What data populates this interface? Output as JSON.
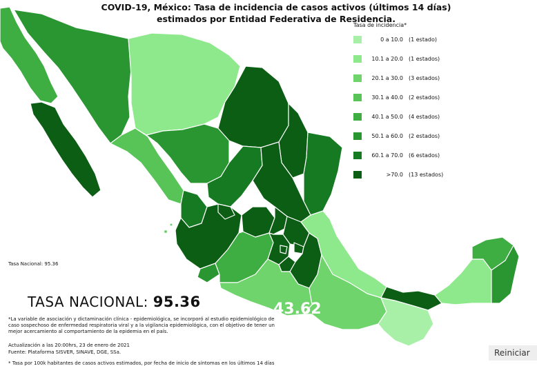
{
  "title_line1": "COVID-19, México: Tasa de incidencia de casos activos (últimos 14 días)",
  "title_line2": "estimados por Entidad Federativa de Residencia.",
  "legend": {
    "title": "Tasa de incidencia*",
    "items": [
      {
        "range": "0 a 10.0",
        "count": "(1 estado)",
        "color": "#a8f0a8"
      },
      {
        "range": "10.1 a 20.0",
        "count": "(1 estados)",
        "color": "#8ee88c"
      },
      {
        "range": "20.1 a 30.0",
        "count": "(3 estados)",
        "color": "#6fd46c"
      },
      {
        "range": "30.1 a 40.0",
        "count": "(2 estados)",
        "color": "#58c457"
      },
      {
        "range": "40.1 a 50.0",
        "count": "(4 estados)",
        "color": "#3eae42"
      },
      {
        "range": "50.1 a 60.0",
        "count": "(2 estados)",
        "color": "#2a9632"
      },
      {
        "range": "60.1 a 70.0",
        "count": "(6 estados)",
        "color": "#167a22"
      },
      {
        "range": ">70.0",
        "count": "(13 estados)",
        "color": "#0b5e14"
      }
    ]
  },
  "small_rate": "Tasa Nacional: 95.36",
  "national_label": "TASA NACIONAL:",
  "national_value": "95.36",
  "map_label": "43.62",
  "footnote": "*La variable de asociación y dictaminación clínica - epidemiológica, se incorporó al estudio epidemiológico de caso sospechoso de enfermedad respiratoria viral y a la vigilancia epidemiológica, con el objetivo de tener un mejor acercamiento al comportamiento de la epidemia en el país.",
  "updated": "Actualización a las 20:00hrs, 23 de enero de 2021",
  "source": "Fuente: Plataforma SISVER, SINAVE, DGE, SSa.",
  "footnote2": "* Tasa por 100k habitantes de casos activos estimados, por fecha de inicio de síntomas en los últimos 14 días",
  "reset_label": "Reiniciar",
  "colors": {
    "border": "#ffffff"
  }
}
